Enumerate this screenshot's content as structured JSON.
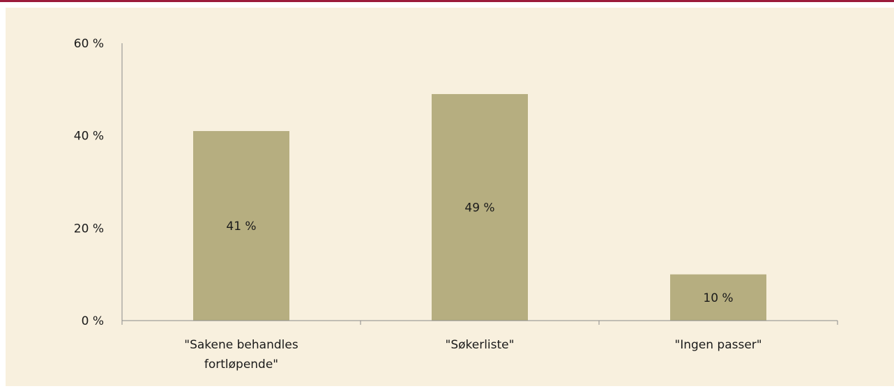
{
  "chart_data": {
    "type": "bar",
    "categories": [
      [
        "\"Sakene behandles",
        "fortløpende\""
      ],
      [
        "\"Søkerliste\""
      ],
      [
        "\"Ingen passer\""
      ]
    ],
    "values": [
      41,
      49,
      10
    ],
    "data_labels": [
      "41 %",
      "49 %",
      "10 %"
    ],
    "yticks": [
      0,
      20,
      40,
      60
    ],
    "ytick_labels": [
      "0 %",
      "20 %",
      "40 %",
      "60 %"
    ],
    "ylim": [
      0,
      60
    ],
    "title": "",
    "xlabel": "",
    "ylabel": "",
    "grid": false,
    "legend": "none",
    "colors": {
      "bar": "#b6ae80",
      "axis": "#8a8a8a",
      "background": "#f8f0de",
      "top_rule": "#9b1b3b"
    }
  }
}
